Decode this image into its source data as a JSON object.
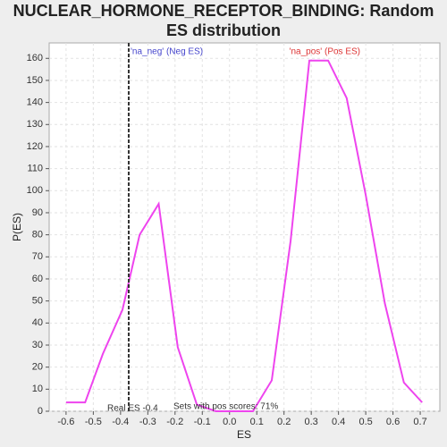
{
  "chart_data": {
    "type": "line",
    "title": [
      "NUCLEAR_HORMONE_RECEPTOR_BINDING: Random",
      "ES distribution"
    ],
    "x_label": "ES",
    "y_label": "P(ES)",
    "x": [
      -0.6,
      -0.53,
      -0.465,
      -0.393,
      -0.33,
      -0.26,
      -0.19,
      -0.12,
      -0.05,
      0.017,
      0.086,
      0.155,
      0.224,
      0.293,
      0.362,
      0.43,
      0.5,
      0.57,
      0.64,
      0.707
    ],
    "series": [
      {
        "name": "P(ES)",
        "color": "#ee44ee",
        "values": [
          4,
          4,
          26,
          46,
          80,
          94,
          29,
          3,
          0,
          0,
          0,
          14,
          77,
          159,
          159,
          142,
          98,
          49,
          13,
          4
        ]
      }
    ],
    "xlim": [
      -0.662,
      0.772
    ],
    "ylim": [
      0,
      167
    ],
    "xticks": [
      -0.6,
      -0.5,
      -0.4,
      -0.3,
      -0.2,
      -0.1,
      {
        "value": 0,
        "label": "0.0"
      },
      0.1,
      0.2,
      0.3,
      0.4,
      0.5,
      0.6,
      0.7
    ],
    "yticks": [
      0,
      10,
      20,
      30,
      40,
      50,
      60,
      70,
      80,
      90,
      100,
      110,
      120,
      130,
      140,
      150,
      160
    ],
    "grid": true,
    "real_es_line": {
      "x": -0.37,
      "color": "#333333"
    },
    "annotations": {
      "neg": "'na_neg' (Neg ES)",
      "pos": "'na_pos' (Pos ES)",
      "real_es": "Real ES -0.4",
      "pos_scores": "Sets with pos scores: 71%"
    }
  }
}
